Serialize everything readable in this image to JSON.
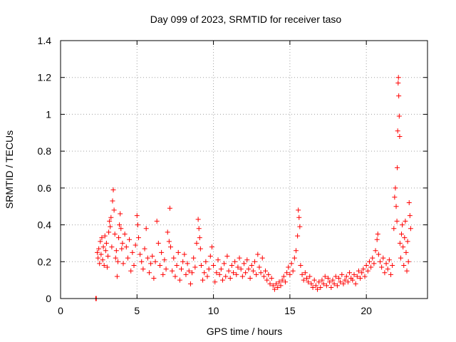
{
  "chart_data": {
    "type": "scatter",
    "title": "Day 099 of 2023, SRMTID for receiver taso",
    "xlabel": "GPS time / hours",
    "ylabel": "SRMTID / TECUs",
    "xlim": [
      0,
      24
    ],
    "ylim": [
      0,
      1.4
    ],
    "grid": true,
    "x_ticks": [
      0,
      5,
      10,
      15,
      20
    ],
    "x_tick_labels": [
      "0",
      "5",
      "10",
      "15",
      "20"
    ],
    "y_ticks": [
      0,
      0.2,
      0.4,
      0.6,
      0.8,
      1.0,
      1.2,
      1.4
    ],
    "y_tick_labels": [
      "0",
      "0.2",
      "0.4",
      "0.6",
      "0.8",
      "1",
      "1.2",
      "1.4"
    ],
    "marker_color": "#ff0000",
    "series": [
      {
        "name": "SRMTID",
        "marker": "plus",
        "points": [
          [
            2.3,
            0.0
          ],
          [
            2.32,
            0.0
          ],
          [
            2.34,
            0.0
          ],
          [
            2.4,
            0.25
          ],
          [
            2.45,
            0.22
          ],
          [
            2.5,
            0.27
          ],
          [
            2.55,
            0.19
          ],
          [
            2.6,
            0.31
          ],
          [
            2.65,
            0.24
          ],
          [
            2.7,
            0.33
          ],
          [
            2.75,
            0.21
          ],
          [
            2.8,
            0.28
          ],
          [
            2.85,
            0.18
          ],
          [
            2.9,
            0.34
          ],
          [
            2.95,
            0.26
          ],
          [
            3.0,
            0.3
          ],
          [
            3.05,
            0.17
          ],
          [
            3.1,
            0.23
          ],
          [
            3.15,
            0.36
          ],
          [
            3.2,
            0.42
          ],
          [
            3.25,
            0.39
          ],
          [
            3.3,
            0.44
          ],
          [
            3.35,
            0.28
          ],
          [
            3.4,
            0.53
          ],
          [
            3.45,
            0.59
          ],
          [
            3.5,
            0.48
          ],
          [
            3.55,
            0.35
          ],
          [
            3.6,
            0.22
          ],
          [
            3.65,
            0.26
          ],
          [
            3.7,
            0.12
          ],
          [
            3.75,
            0.2
          ],
          [
            3.8,
            0.33
          ],
          [
            3.85,
            0.4
          ],
          [
            3.9,
            0.46
          ],
          [
            3.95,
            0.38
          ],
          [
            4.0,
            0.27
          ],
          [
            4.05,
            0.3
          ],
          [
            4.1,
            0.19
          ],
          [
            4.2,
            0.35
          ],
          [
            4.3,
            0.28
          ],
          [
            4.4,
            0.22
          ],
          [
            4.5,
            0.32
          ],
          [
            4.6,
            0.15
          ],
          [
            4.7,
            0.25
          ],
          [
            4.8,
            0.18
          ],
          [
            4.9,
            0.29
          ],
          [
            5.0,
            0.45
          ],
          [
            5.05,
            0.4
          ],
          [
            5.1,
            0.33
          ],
          [
            5.2,
            0.24
          ],
          [
            5.3,
            0.2
          ],
          [
            5.4,
            0.16
          ],
          [
            5.5,
            0.27
          ],
          [
            5.6,
            0.38
          ],
          [
            5.7,
            0.22
          ],
          [
            5.8,
            0.14
          ],
          [
            5.9,
            0.19
          ],
          [
            6.0,
            0.23
          ],
          [
            6.1,
            0.11
          ],
          [
            6.2,
            0.2
          ],
          [
            6.3,
            0.42
          ],
          [
            6.4,
            0.3
          ],
          [
            6.5,
            0.18
          ],
          [
            6.6,
            0.25
          ],
          [
            6.7,
            0.13
          ],
          [
            6.8,
            0.21
          ],
          [
            6.9,
            0.16
          ],
          [
            7.0,
            0.36
          ],
          [
            7.1,
            0.31
          ],
          [
            7.15,
            0.49
          ],
          [
            7.2,
            0.28
          ],
          [
            7.3,
            0.15
          ],
          [
            7.4,
            0.22
          ],
          [
            7.5,
            0.12
          ],
          [
            7.6,
            0.18
          ],
          [
            7.7,
            0.25
          ],
          [
            7.8,
            0.1
          ],
          [
            7.9,
            0.16
          ],
          [
            8.0,
            0.2
          ],
          [
            8.1,
            0.24
          ],
          [
            8.2,
            0.13
          ],
          [
            8.3,
            0.19
          ],
          [
            8.4,
            0.15
          ],
          [
            8.5,
            0.08
          ],
          [
            8.6,
            0.14
          ],
          [
            8.7,
            0.22
          ],
          [
            8.8,
            0.17
          ],
          [
            8.9,
            0.3
          ],
          [
            9.0,
            0.43
          ],
          [
            9.05,
            0.38
          ],
          [
            9.1,
            0.33
          ],
          [
            9.15,
            0.27
          ],
          [
            9.2,
            0.18
          ],
          [
            9.3,
            0.1
          ],
          [
            9.4,
            0.14
          ],
          [
            9.5,
            0.2
          ],
          [
            9.6,
            0.12
          ],
          [
            9.7,
            0.16
          ],
          [
            9.8,
            0.23
          ],
          [
            9.9,
            0.28
          ],
          [
            10.0,
            0.18
          ],
          [
            10.1,
            0.09
          ],
          [
            10.2,
            0.14
          ],
          [
            10.3,
            0.21
          ],
          [
            10.4,
            0.13
          ],
          [
            10.5,
            0.16
          ],
          [
            10.6,
            0.1
          ],
          [
            10.7,
            0.19
          ],
          [
            10.8,
            0.12
          ],
          [
            10.9,
            0.23
          ],
          [
            11.0,
            0.15
          ],
          [
            11.1,
            0.11
          ],
          [
            11.2,
            0.18
          ],
          [
            11.3,
            0.14
          ],
          [
            11.4,
            0.2
          ],
          [
            11.5,
            0.13
          ],
          [
            11.6,
            0.17
          ],
          [
            11.7,
            0.22
          ],
          [
            11.8,
            0.16
          ],
          [
            11.9,
            0.12
          ],
          [
            12.0,
            0.19
          ],
          [
            12.1,
            0.14
          ],
          [
            12.2,
            0.21
          ],
          [
            12.3,
            0.16
          ],
          [
            12.4,
            0.11
          ],
          [
            12.5,
            0.18
          ],
          [
            12.6,
            0.15
          ],
          [
            12.7,
            0.2
          ],
          [
            12.8,
            0.13
          ],
          [
            12.9,
            0.24
          ],
          [
            13.0,
            0.17
          ],
          [
            13.1,
            0.14
          ],
          [
            13.2,
            0.22
          ],
          [
            13.3,
            0.12
          ],
          [
            13.4,
            0.15
          ],
          [
            13.5,
            0.1
          ],
          [
            13.6,
            0.13
          ],
          [
            13.7,
            0.08
          ],
          [
            13.8,
            0.11
          ],
          [
            13.9,
            0.07
          ],
          [
            14.0,
            0.05
          ],
          [
            14.1,
            0.08
          ],
          [
            14.2,
            0.06
          ],
          [
            14.3,
            0.09
          ],
          [
            14.4,
            0.07
          ],
          [
            14.5,
            0.1
          ],
          [
            14.6,
            0.12
          ],
          [
            14.7,
            0.09
          ],
          [
            14.8,
            0.14
          ],
          [
            14.9,
            0.17
          ],
          [
            15.0,
            0.13
          ],
          [
            15.1,
            0.19
          ],
          [
            15.2,
            0.15
          ],
          [
            15.3,
            0.22
          ],
          [
            15.4,
            0.26
          ],
          [
            15.5,
            0.34
          ],
          [
            15.55,
            0.48
          ],
          [
            15.6,
            0.44
          ],
          [
            15.65,
            0.39
          ],
          [
            15.7,
            0.18
          ],
          [
            15.8,
            0.13
          ],
          [
            15.9,
            0.1
          ],
          [
            16.0,
            0.14
          ],
          [
            16.1,
            0.11
          ],
          [
            16.2,
            0.09
          ],
          [
            16.3,
            0.12
          ],
          [
            16.4,
            0.08
          ],
          [
            16.5,
            0.06
          ],
          [
            16.6,
            0.1
          ],
          [
            16.7,
            0.07
          ],
          [
            16.8,
            0.05
          ],
          [
            16.9,
            0.09
          ],
          [
            17.0,
            0.06
          ],
          [
            17.1,
            0.1
          ],
          [
            17.2,
            0.08
          ],
          [
            17.3,
            0.12
          ],
          [
            17.4,
            0.07
          ],
          [
            17.5,
            0.11
          ],
          [
            17.6,
            0.09
          ],
          [
            17.7,
            0.06
          ],
          [
            17.8,
            0.1
          ],
          [
            17.9,
            0.08
          ],
          [
            18.0,
            0.12
          ],
          [
            18.1,
            0.07
          ],
          [
            18.2,
            0.11
          ],
          [
            18.3,
            0.09
          ],
          [
            18.4,
            0.13
          ],
          [
            18.5,
            0.08
          ],
          [
            18.6,
            0.1
          ],
          [
            18.7,
            0.12
          ],
          [
            18.8,
            0.09
          ],
          [
            18.9,
            0.14
          ],
          [
            19.0,
            0.11
          ],
          [
            19.1,
            0.1
          ],
          [
            19.2,
            0.13
          ],
          [
            19.3,
            0.08
          ],
          [
            19.4,
            0.12
          ],
          [
            19.5,
            0.15
          ],
          [
            19.6,
            0.11
          ],
          [
            19.7,
            0.14
          ],
          [
            19.8,
            0.16
          ],
          [
            19.9,
            0.12
          ],
          [
            20.0,
            0.18
          ],
          [
            20.1,
            0.15
          ],
          [
            20.2,
            0.2
          ],
          [
            20.3,
            0.17
          ],
          [
            20.4,
            0.22
          ],
          [
            20.5,
            0.19
          ],
          [
            20.6,
            0.26
          ],
          [
            20.7,
            0.32
          ],
          [
            20.75,
            0.35
          ],
          [
            20.8,
            0.24
          ],
          [
            20.9,
            0.2
          ],
          [
            21.0,
            0.17
          ],
          [
            21.1,
            0.22
          ],
          [
            21.2,
            0.14
          ],
          [
            21.3,
            0.19
          ],
          [
            21.4,
            0.16
          ],
          [
            21.5,
            0.21
          ],
          [
            21.6,
            0.13
          ],
          [
            21.7,
            0.18
          ],
          [
            21.8,
            0.38
          ],
          [
            21.85,
            0.55
          ],
          [
            21.9,
            0.6
          ],
          [
            21.95,
            0.5
          ],
          [
            22.0,
            0.42
          ],
          [
            22.02,
            0.71
          ],
          [
            22.05,
            0.91
          ],
          [
            22.08,
            1.17
          ],
          [
            22.1,
            1.2
          ],
          [
            22.12,
            1.1
          ],
          [
            22.15,
            0.99
          ],
          [
            22.18,
            0.88
          ],
          [
            22.2,
            0.3
          ],
          [
            22.25,
            0.22
          ],
          [
            22.3,
            0.35
          ],
          [
            22.35,
            0.4
          ],
          [
            22.4,
            0.28
          ],
          [
            22.45,
            0.18
          ],
          [
            22.5,
            0.33
          ],
          [
            22.55,
            0.42
          ],
          [
            22.6,
            0.25
          ],
          [
            22.65,
            0.15
          ],
          [
            22.7,
            0.31
          ],
          [
            22.75,
            0.2
          ],
          [
            22.8,
            0.52
          ],
          [
            22.85,
            0.45
          ],
          [
            22.9,
            0.38
          ]
        ]
      }
    ]
  }
}
